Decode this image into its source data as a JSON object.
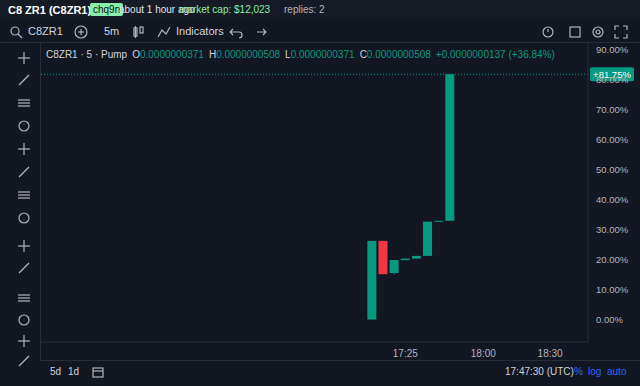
{
  "header": {
    "title": "C8 ZR1 (C8ZR1)",
    "creator": "chq9n",
    "age": "about 1 hour ago",
    "market_cap": "market cap: $12,023",
    "replies": "replies: 2"
  },
  "toolbar": {
    "symbol": "C8ZR1",
    "interval": "5m",
    "indicators": "Indicators"
  },
  "legend": {
    "series": "C8ZR1 · 5 · Pump",
    "ohlc": [
      {
        "label": "O",
        "value": "0.0000000371"
      },
      {
        "label": "H",
        "value": "0.0000000508"
      },
      {
        "label": "L",
        "value": "0.0000000371"
      },
      {
        "label": "C",
        "value": "0.0000000508"
      }
    ],
    "change": "+0.0000000137 (+36.84%)"
  },
  "chart_data": {
    "type": "candlestick",
    "x": [
      1030,
      1035,
      1040,
      1045,
      1050,
      1055,
      1060,
      1065
    ],
    "open": [
      0,
      26.2,
      15.5,
      19.8,
      20.3,
      21.2,
      32.6,
      32.9
    ],
    "high": [
      26.2,
      26.2,
      19.8,
      20.3,
      21.2,
      32.6,
      32.9,
      81.75
    ],
    "low": [
      0,
      15.1,
      15.1,
      19.8,
      20.3,
      21.2,
      32.6,
      32.9
    ],
    "close": [
      26.2,
      15.1,
      19.8,
      20.3,
      21.2,
      32.6,
      32.9,
      81.75
    ],
    "colors": [
      "#089981",
      "#f23645",
      "#089981",
      "#089981",
      "#089981",
      "#089981",
      "#089981",
      "#089981"
    ],
    "xlim": [
      881,
      1127
    ],
    "xticks": [
      {
        "value": 1045,
        "label": "17:25"
      },
      {
        "value": 1080,
        "label": "18:00"
      },
      {
        "value": 1110,
        "label": "18:30"
      }
    ],
    "ylim": [
      -7.5,
      92.5
    ],
    "yticks": [
      {
        "value": 0,
        "label": "0.00%"
      },
      {
        "value": 10,
        "label": "10.00%"
      },
      {
        "value": 20,
        "label": "20.00%"
      },
      {
        "value": 30,
        "label": "30.00%"
      },
      {
        "value": 40,
        "label": "40.00%"
      },
      {
        "value": 50,
        "label": "50.00%"
      },
      {
        "value": 60,
        "label": "60.00%"
      },
      {
        "value": 70,
        "label": "70.00%"
      },
      {
        "value": 80,
        "label": "80.00%"
      },
      {
        "value": 90,
        "label": "90.00%"
      }
    ],
    "last_price": {
      "value": 81.75,
      "label": "+81.75%"
    },
    "grid": false
  },
  "footer": {
    "ranges": [
      "5d",
      "1d"
    ],
    "clock": "17:47:30 (UTC)",
    "options": [
      "%",
      "log",
      "auto"
    ]
  }
}
